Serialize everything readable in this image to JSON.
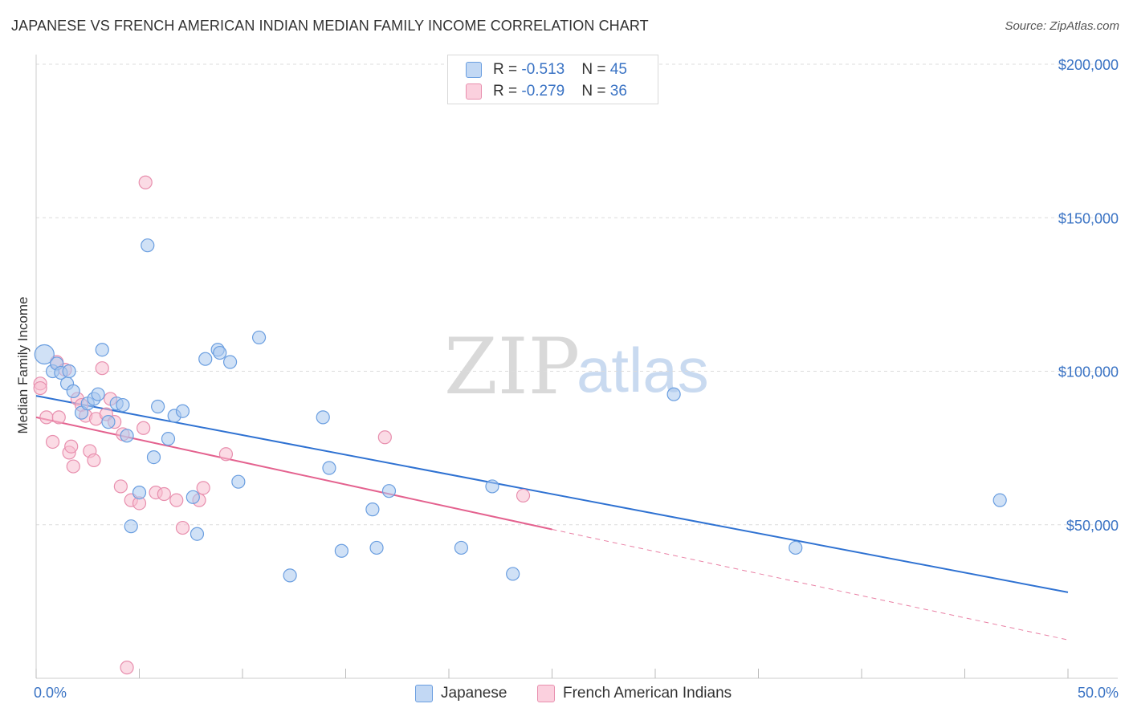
{
  "title": "JAPANESE VS FRENCH AMERICAN INDIAN MEDIAN FAMILY INCOME CORRELATION CHART",
  "source": "Source: ZipAtlas.com",
  "watermark": {
    "zip": "ZIP",
    "atlas": "atlas"
  },
  "legend_top": [
    {
      "r_label": "R = ",
      "r_value": "-0.513",
      "n_label": "N = ",
      "n_value": "45"
    },
    {
      "r_label": "R = ",
      "r_value": "-0.279",
      "n_label": "N = ",
      "n_value": "36"
    }
  ],
  "chart_data": {
    "type": "scatter",
    "title": "JAPANESE VS FRENCH AMERICAN INDIAN MEDIAN FAMILY INCOME CORRELATION CHART",
    "xlabel": "",
    "ylabel": "Median Family Income",
    "xlim": [
      0,
      50
    ],
    "ylim": [
      0,
      210000
    ],
    "x_tick_labels": [
      "0.0%",
      "50.0%"
    ],
    "y_ticks": [
      50000,
      100000,
      150000,
      200000
    ],
    "y_tick_labels": [
      "$50,000",
      "$100,000",
      "$150,000",
      "$200,000"
    ],
    "grid": true,
    "legend_position": "top-center",
    "colors": {
      "japanese_fill": "#a9c8ef",
      "japanese_stroke": "#6a9ee0",
      "japanese_line": "#2f72d2",
      "french_fill": "#f7bdd0",
      "french_stroke": "#e88fae",
      "french_line": "#e4628f"
    },
    "series": [
      {
        "name": "Japanese",
        "r": -0.513,
        "n": 45,
        "trend": {
          "x0": 0,
          "y0": 92000,
          "x1": 50,
          "y1": 28000
        },
        "points": [
          [
            0.4,
            105500
          ],
          [
            0.8,
            100000
          ],
          [
            1.0,
            102500
          ],
          [
            1.2,
            99500
          ],
          [
            1.5,
            96000
          ],
          [
            1.6,
            100000
          ],
          [
            1.8,
            93500
          ],
          [
            2.2,
            86500
          ],
          [
            2.5,
            89500
          ],
          [
            2.8,
            91000
          ],
          [
            3.0,
            92500
          ],
          [
            3.2,
            107000
          ],
          [
            3.5,
            83500
          ],
          [
            3.9,
            89500
          ],
          [
            4.2,
            89000
          ],
          [
            4.4,
            79000
          ],
          [
            4.6,
            49500
          ],
          [
            5.0,
            60500
          ],
          [
            5.4,
            141000
          ],
          [
            5.7,
            72000
          ],
          [
            5.9,
            88500
          ],
          [
            6.4,
            78000
          ],
          [
            6.7,
            85500
          ],
          [
            7.1,
            87000
          ],
          [
            7.6,
            59000
          ],
          [
            7.8,
            47000
          ],
          [
            8.2,
            104000
          ],
          [
            8.8,
            107000
          ],
          [
            8.9,
            106000
          ],
          [
            9.4,
            103000
          ],
          [
            9.8,
            64000
          ],
          [
            10.8,
            111000
          ],
          [
            12.3,
            33500
          ],
          [
            13.9,
            85000
          ],
          [
            14.2,
            68500
          ],
          [
            14.8,
            41500
          ],
          [
            16.3,
            55000
          ],
          [
            16.5,
            42500
          ],
          [
            17.1,
            61000
          ],
          [
            20.6,
            42500
          ],
          [
            22.1,
            62500
          ],
          [
            23.1,
            34000
          ],
          [
            30.9,
            92500
          ],
          [
            36.8,
            42500
          ],
          [
            46.7,
            58000
          ]
        ]
      },
      {
        "name": "French American Indians",
        "r": -0.279,
        "n": 36,
        "trend": {
          "x0": 0,
          "y0": 85000,
          "x1": 25,
          "y1": 48500,
          "dash_x1": 50,
          "dash_y1": 12500
        },
        "points": [
          [
            0.2,
            96000
          ],
          [
            0.2,
            94500
          ],
          [
            0.5,
            85000
          ],
          [
            0.8,
            77000
          ],
          [
            1.0,
            103000
          ],
          [
            1.1,
            85000
          ],
          [
            1.4,
            100500
          ],
          [
            1.6,
            73500
          ],
          [
            1.7,
            75500
          ],
          [
            1.8,
            69000
          ],
          [
            2.0,
            91000
          ],
          [
            2.2,
            89000
          ],
          [
            2.4,
            85500
          ],
          [
            2.6,
            74000
          ],
          [
            2.8,
            71000
          ],
          [
            2.9,
            84500
          ],
          [
            3.2,
            101000
          ],
          [
            3.4,
            86000
          ],
          [
            3.6,
            91000
          ],
          [
            3.8,
            83500
          ],
          [
            4.1,
            62500
          ],
          [
            4.2,
            79500
          ],
          [
            4.4,
            3500
          ],
          [
            4.6,
            58000
          ],
          [
            5.0,
            57000
          ],
          [
            5.2,
            81500
          ],
          [
            5.3,
            161500
          ],
          [
            5.8,
            60500
          ],
          [
            6.2,
            60000
          ],
          [
            6.8,
            58000
          ],
          [
            7.1,
            49000
          ],
          [
            7.9,
            58000
          ],
          [
            8.1,
            62000
          ],
          [
            9.2,
            73000
          ],
          [
            16.9,
            78500
          ],
          [
            23.6,
            59500
          ]
        ]
      }
    ]
  },
  "legend_bottom": [
    {
      "label": "Japanese"
    },
    {
      "label": "French American Indians"
    }
  ]
}
